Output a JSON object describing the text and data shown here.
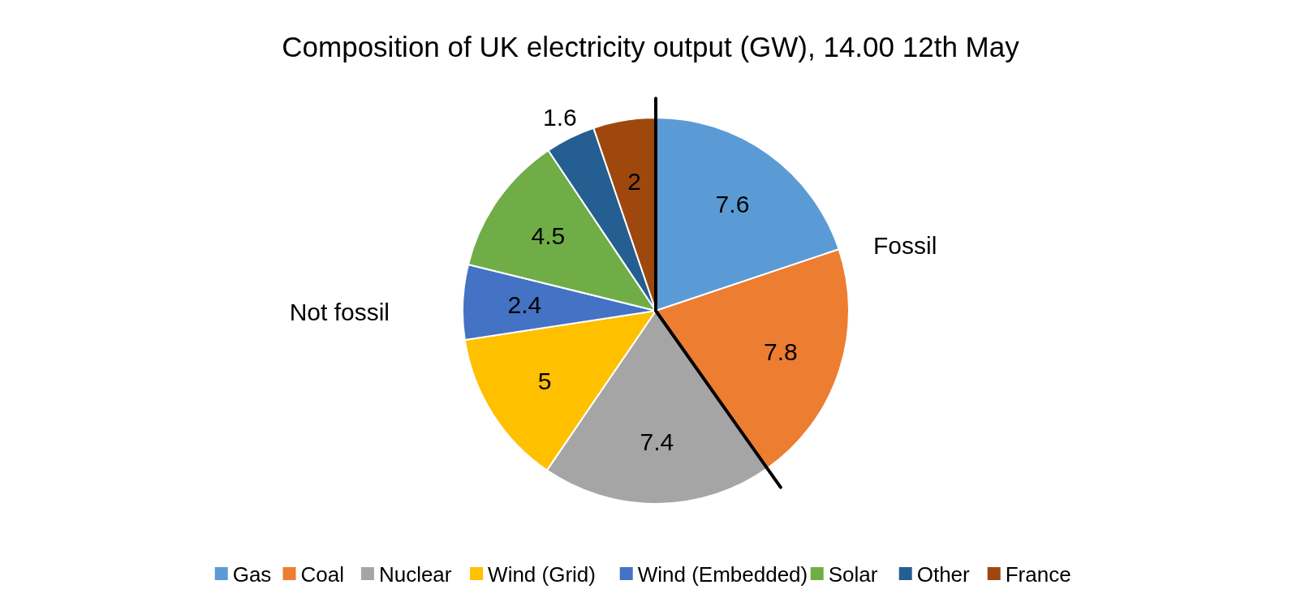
{
  "chart_data": {
    "type": "pie",
    "title": "Composition of UK electricity output (GW), 14.00 12th May",
    "categories": [
      "Gas",
      "Coal",
      "Nuclear",
      "Wind (Grid)",
      "Wind (Embedded)",
      "Solar",
      "Other",
      "France"
    ],
    "values": [
      7.6,
      7.8,
      7.4,
      5,
      2.4,
      4.5,
      1.6,
      2
    ],
    "colors": [
      "#5b9bd5",
      "#ed7d31",
      "#a5a5a5",
      "#ffc000",
      "#4472c4",
      "#70ad47",
      "#255e91",
      "#9e480e"
    ],
    "data_labels": true,
    "legend": "bottom",
    "annotations": [
      "Fossil",
      "Not fossil"
    ]
  }
}
